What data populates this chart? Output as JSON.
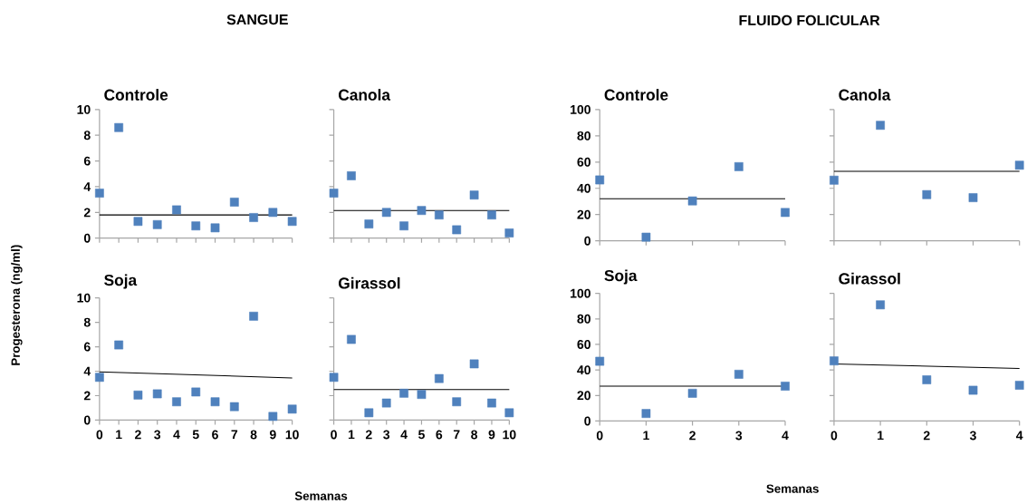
{
  "chart_data": [
    {
      "type": "scatter",
      "title": "Controle",
      "annotations": [
        "SANGUE"
      ],
      "x": [
        0,
        1,
        2,
        3,
        4,
        5,
        6,
        7,
        8,
        9,
        10
      ],
      "xlim": [
        0,
        10
      ],
      "xticks": [
        0,
        1,
        2,
        3,
        4,
        5,
        6,
        7,
        8,
        9,
        10
      ],
      "ylim": [
        0,
        10
      ],
      "yticks": [
        0,
        2,
        4,
        6,
        8,
        10
      ],
      "tick_labels": "y",
      "marker": "square",
      "series": [
        {
          "color": "#4f81bd",
          "values": [
            3.5,
            8.6,
            1.3,
            1.05,
            2.2,
            0.95,
            0.8,
            2.8,
            1.6,
            2.0,
            1.3
          ]
        },
        {
          "type": "line",
          "marker": "none",
          "color": "#000000",
          "x": [
            0,
            10
          ],
          "values": [
            1.8,
            1.8
          ]
        }
      ]
    },
    {
      "type": "scatter",
      "title": "Canola",
      "x": [
        0,
        1,
        2,
        3,
        4,
        5,
        6,
        7,
        8,
        9,
        10
      ],
      "xlim": [
        0,
        10
      ],
      "xticks": [
        0,
        1,
        2,
        3,
        4,
        5,
        6,
        7,
        8,
        9,
        10
      ],
      "ylim": [
        0,
        10
      ],
      "yticks": [
        0,
        2,
        4,
        6,
        8,
        10
      ],
      "tick_labels": false,
      "marker": "square",
      "series": [
        {
          "color": "#4f81bd",
          "values": [
            3.5,
            4.85,
            1.1,
            2.0,
            0.95,
            2.15,
            1.8,
            0.65,
            3.35,
            1.8,
            0.4
          ]
        },
        {
          "type": "line",
          "marker": "none",
          "color": "#000000",
          "x": [
            0,
            10
          ],
          "values": [
            2.15,
            2.15
          ]
        }
      ]
    },
    {
      "type": "scatter",
      "title": "Controle",
      "annotations": [
        "FLUIDO FOLICULAR"
      ],
      "x": [
        0,
        1,
        2,
        3,
        4
      ],
      "xlim": [
        0,
        4
      ],
      "xticks": [
        0,
        1,
        2,
        3,
        4
      ],
      "ylim": [
        0,
        100
      ],
      "yticks": [
        0,
        20,
        40,
        60,
        80,
        100
      ],
      "tick_labels": "y",
      "marker": "square",
      "series": [
        {
          "color": "#4f81bd",
          "values": [
            46.4,
            2.8,
            30.4,
            56.5,
            21.6
          ]
        },
        {
          "type": "line",
          "marker": "none",
          "color": "#000000",
          "x": [
            0,
            4
          ],
          "values": [
            32,
            32
          ]
        }
      ]
    },
    {
      "type": "scatter",
      "title": "Canola",
      "x": [
        0,
        1,
        2,
        3,
        4
      ],
      "xlim": [
        0,
        4
      ],
      "xticks": [
        0,
        1,
        2,
        3,
        4
      ],
      "ylim": [
        0,
        100
      ],
      "yticks": [
        0,
        20,
        40,
        60,
        80,
        100
      ],
      "tick_labels": false,
      "marker": "square",
      "series": [
        {
          "color": "#4f81bd",
          "values": [
            46.2,
            88,
            35.2,
            32.9,
            57.6
          ]
        },
        {
          "type": "line",
          "marker": "none",
          "color": "#000000",
          "x": [
            0,
            4
          ],
          "values": [
            52.9,
            52.9
          ]
        }
      ]
    },
    {
      "type": "scatter",
      "title": "Soja",
      "xlabel": "Semanas",
      "ylabel": "Progesterona (ng/ml)",
      "x": [
        0,
        1,
        2,
        3,
        4,
        5,
        6,
        7,
        8,
        9,
        10
      ],
      "xlim": [
        0,
        10
      ],
      "xticks": [
        0,
        1,
        2,
        3,
        4,
        5,
        6,
        7,
        8,
        9,
        10
      ],
      "ylim": [
        0,
        10
      ],
      "yticks": [
        0,
        2,
        4,
        6,
        8,
        10
      ],
      "marker": "square",
      "series": [
        {
          "color": "#4f81bd",
          "values": [
            3.5,
            6.15,
            2.05,
            2.15,
            1.5,
            2.3,
            1.5,
            1.1,
            8.5,
            0.3,
            0.9
          ]
        },
        {
          "type": "line",
          "marker": "none",
          "color": "#000000",
          "x": [
            0,
            10
          ],
          "values": [
            3.95,
            3.45
          ]
        }
      ]
    },
    {
      "type": "scatter",
      "title": "Girassol",
      "x": [
        0,
        1,
        2,
        3,
        4,
        5,
        6,
        7,
        8,
        9,
        10
      ],
      "xlim": [
        0,
        10
      ],
      "xticks": [
        0,
        1,
        2,
        3,
        4,
        5,
        6,
        7,
        8,
        9,
        10
      ],
      "ylim": [
        0,
        10
      ],
      "yticks": [
        0,
        2,
        4,
        6,
        8,
        10
      ],
      "tick_labels": "x",
      "marker": "square",
      "series": [
        {
          "color": "#4f81bd",
          "values": [
            3.5,
            6.6,
            0.6,
            1.4,
            2.2,
            2.1,
            3.4,
            1.5,
            4.6,
            1.4,
            0.6
          ]
        },
        {
          "type": "line",
          "marker": "none",
          "color": "#000000",
          "x": [
            0,
            10
          ],
          "values": [
            2.5,
            2.5
          ]
        }
      ]
    },
    {
      "type": "scatter",
      "title": "Soja",
      "xlabel": "Semanas",
      "x": [
        0,
        1,
        2,
        3,
        4
      ],
      "xlim": [
        0,
        4
      ],
      "xticks": [
        0,
        1,
        2,
        3,
        4
      ],
      "ylim": [
        0,
        100
      ],
      "yticks": [
        0,
        20,
        40,
        60,
        80,
        100
      ],
      "marker": "square",
      "series": [
        {
          "color": "#4f81bd",
          "values": [
            46.8,
            5.9,
            21.7,
            36.6,
            27.3
          ]
        },
        {
          "type": "line",
          "marker": "none",
          "color": "#000000",
          "x": [
            0,
            4
          ],
          "values": [
            27.3,
            27.3
          ]
        }
      ]
    },
    {
      "type": "scatter",
      "title": "Girassol",
      "x": [
        0,
        1,
        2,
        3,
        4
      ],
      "xlim": [
        0,
        4
      ],
      "xticks": [
        0,
        1,
        2,
        3,
        4
      ],
      "ylim": [
        0,
        100
      ],
      "yticks": [
        0,
        20,
        40,
        60,
        80,
        100
      ],
      "tick_labels": "x",
      "marker": "square",
      "series": [
        {
          "color": "#4f81bd",
          "values": [
            47.1,
            91,
            32.3,
            24.1,
            28
          ]
        },
        {
          "type": "line",
          "marker": "none",
          "color": "#000000",
          "x": [
            0,
            4
          ],
          "values": [
            44.7,
            41.2
          ]
        }
      ]
    }
  ]
}
